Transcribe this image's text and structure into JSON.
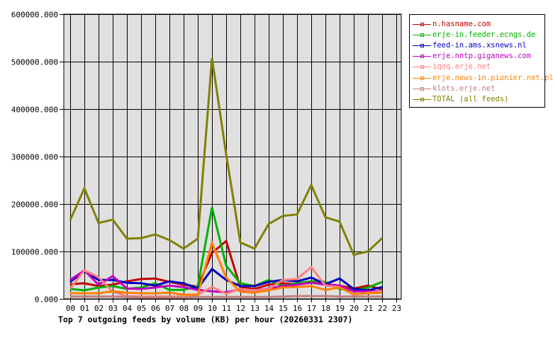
{
  "chart_data": {
    "type": "line",
    "title": "Top 7 outgoing feeds by volume (KB) per hour (20260331 2307)",
    "xlabel": "",
    "ylabel": "",
    "x": [
      "00",
      "01",
      "02",
      "03",
      "04",
      "05",
      "06",
      "07",
      "08",
      "09",
      "10",
      "11",
      "12",
      "13",
      "14",
      "15",
      "16",
      "17",
      "18",
      "19",
      "20",
      "21",
      "22",
      "23"
    ],
    "ylim": [
      0,
      600000
    ],
    "yticks": [
      "0.000",
      "100000.000",
      "200000.000",
      "300000.000",
      "400000.000",
      "500000.000",
      "600000.000"
    ],
    "grid": true,
    "legend_position": "right",
    "series": [
      {
        "name": "n.hasname.com",
        "color": "#c00000",
        "values": [
          31000,
          33000,
          27000,
          30000,
          37000,
          42000,
          43000,
          36000,
          30000,
          26000,
          97000,
          122000,
          24000,
          21000,
          30000,
          33000,
          31000,
          36000,
          31000,
          28000,
          22000,
          28000,
          20000
        ]
      },
      {
        "name": "erje-in.feeder.ecngs.de",
        "color": "#00b000",
        "values": [
          21000,
          18000,
          24000,
          27000,
          21000,
          24000,
          33000,
          19000,
          19000,
          27000,
          193000,
          70000,
          33000,
          27000,
          40000,
          27000,
          33000,
          37000,
          36000,
          21000,
          18000,
          24000,
          36000
        ]
      },
      {
        "name": "feed-in.ams.xsnews.nl",
        "color": "#0000c0",
        "values": [
          36000,
          58000,
          40000,
          40000,
          34000,
          33000,
          28000,
          37000,
          33000,
          22000,
          63000,
          40000,
          27000,
          27000,
          36000,
          40000,
          37000,
          45000,
          31000,
          43000,
          21000,
          18000,
          25000
        ]
      },
      {
        "name": "erje.nntp.giganews.com",
        "color": "#c000c0",
        "values": [
          40000,
          60000,
          30000,
          48000,
          22000,
          21000,
          24000,
          28000,
          25000,
          19000,
          16000,
          14000,
          20000,
          18000,
          22000,
          27000,
          30000,
          34000,
          30000,
          28000,
          16000,
          16000,
          16000
        ]
      },
      {
        "name": "iqoq.erje.net",
        "color": "#ff8080",
        "values": [
          22000,
          60000,
          46000,
          15000,
          6000,
          5000,
          5000,
          5000,
          5000,
          9000,
          25000,
          11000,
          21000,
          18000,
          21000,
          40000,
          42000,
          67000,
          28000,
          25000,
          9000,
          13000,
          16000
        ]
      },
      {
        "name": "erje.news-in.pionier.net.pl",
        "color": "#ff8000",
        "values": [
          12000,
          12000,
          12000,
          16000,
          13000,
          12000,
          12000,
          13000,
          9000,
          9000,
          118000,
          45000,
          15000,
          13000,
          18000,
          24000,
          25000,
          27000,
          19000,
          24000,
          10000,
          12000,
          13000
        ]
      },
      {
        "name": "klots.erje.net",
        "color": "#c08080",
        "values": [
          5000,
          5000,
          5000,
          5000,
          4000,
          3000,
          3000,
          3000,
          3000,
          4000,
          4000,
          4000,
          4000,
          4000,
          4000,
          5000,
          6000,
          6000,
          6000,
          5000,
          5000,
          5000,
          5000
        ]
      },
      {
        "name": "TOTAL (all feeds)",
        "color": "#808000",
        "values": [
          166000,
          233000,
          160000,
          167000,
          127000,
          128000,
          136000,
          124000,
          106000,
          127000,
          507000,
          305000,
          119000,
          106000,
          158000,
          175000,
          178000,
          240000,
          172000,
          163000,
          93000,
          100000,
          128000
        ]
      }
    ]
  }
}
